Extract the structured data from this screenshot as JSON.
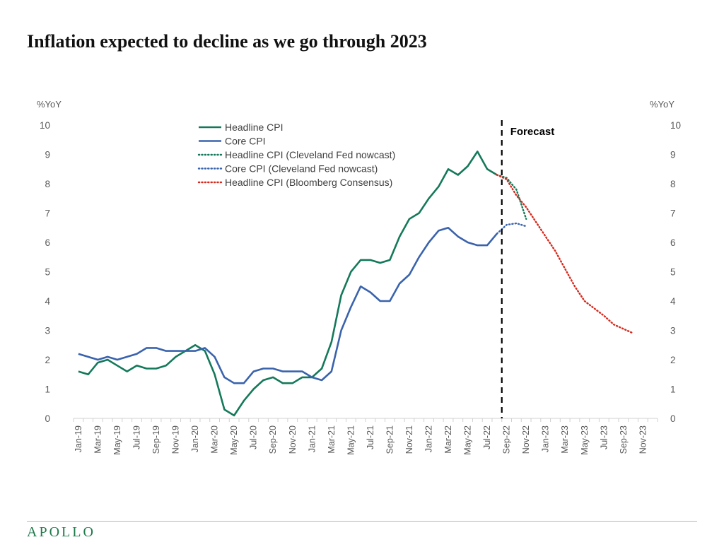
{
  "title": "Inflation expected to decline as we go through 2023",
  "brand": "APOLLO",
  "chart_data": {
    "type": "line",
    "y_label_left": "%YoY",
    "y_label_right": "%YoY",
    "ylim": [
      0,
      10
    ],
    "yticks": [
      0,
      1,
      2,
      3,
      4,
      5,
      6,
      7,
      8,
      9,
      10
    ],
    "x_labels": [
      "Jan-19",
      "Mar-19",
      "May-19",
      "Jul-19",
      "Sep-19",
      "Nov-19",
      "Jan-20",
      "Mar-20",
      "May-20",
      "Jul-20",
      "Sep-20",
      "Nov-20",
      "Jan-21",
      "Mar-21",
      "May-21",
      "Jul-21",
      "Sep-21",
      "Nov-21",
      "Jan-22",
      "Mar-22",
      "May-22",
      "Jul-22",
      "Sep-22",
      "Nov-22",
      "Jan-23",
      "Mar-23",
      "May-23",
      "Jul-23",
      "Sep-23",
      "Nov-23"
    ],
    "x_start": "Jan-19",
    "forecast_start": "Aug-22",
    "forecast_label": "Forecast",
    "grid": false,
    "legend_position": "top-center",
    "series": [
      {
        "name": "Headline CPI",
        "style": "solid",
        "color": "#14795a",
        "values": [
          1.6,
          1.5,
          1.9,
          2.0,
          1.8,
          1.6,
          1.8,
          1.7,
          1.7,
          1.8,
          2.1,
          2.3,
          2.5,
          2.3,
          1.5,
          0.3,
          0.1,
          0.6,
          1.0,
          1.3,
          1.4,
          1.2,
          1.2,
          1.4,
          1.4,
          1.7,
          2.6,
          4.2,
          5.0,
          5.4,
          5.4,
          5.3,
          5.4,
          6.2,
          6.8,
          7.0,
          7.5,
          7.9,
          8.5,
          8.3,
          8.6,
          9.1,
          8.5,
          8.3
        ]
      },
      {
        "name": "Core CPI",
        "style": "solid",
        "color": "#3a63ad",
        "values": [
          2.2,
          2.1,
          2.0,
          2.1,
          2.0,
          2.1,
          2.2,
          2.4,
          2.4,
          2.3,
          2.3,
          2.3,
          2.3,
          2.4,
          2.1,
          1.4,
          1.2,
          1.2,
          1.6,
          1.7,
          1.7,
          1.6,
          1.6,
          1.6,
          1.4,
          1.3,
          1.6,
          3.0,
          3.8,
          4.5,
          4.3,
          4.0,
          4.0,
          4.6,
          4.9,
          5.5,
          6.0,
          6.4,
          6.5,
          6.2,
          6.0,
          5.9,
          5.9,
          6.3
        ]
      },
      {
        "name": "Headline CPI (Cleveland Fed nowcast)",
        "style": "dotted",
        "color": "#14795a",
        "x_start": "Aug-22",
        "values": [
          8.3,
          8.2,
          7.8,
          6.8
        ]
      },
      {
        "name": "Core CPI (Cleveland Fed nowcast)",
        "style": "dotted",
        "color": "#3a63ad",
        "x_start": "Aug-22",
        "values": [
          6.3,
          6.6,
          6.65,
          6.55
        ]
      },
      {
        "name": "Headline CPI (Bloomberg Consensus)",
        "style": "dotted",
        "color": "#d62a1e",
        "x_start": "Aug-22",
        "values": [
          8.3,
          8.15,
          7.6,
          7.2,
          6.7,
          6.2,
          5.7,
          5.1,
          4.5,
          4.0,
          3.75,
          3.5,
          3.2,
          3.05,
          2.9
        ]
      }
    ]
  }
}
